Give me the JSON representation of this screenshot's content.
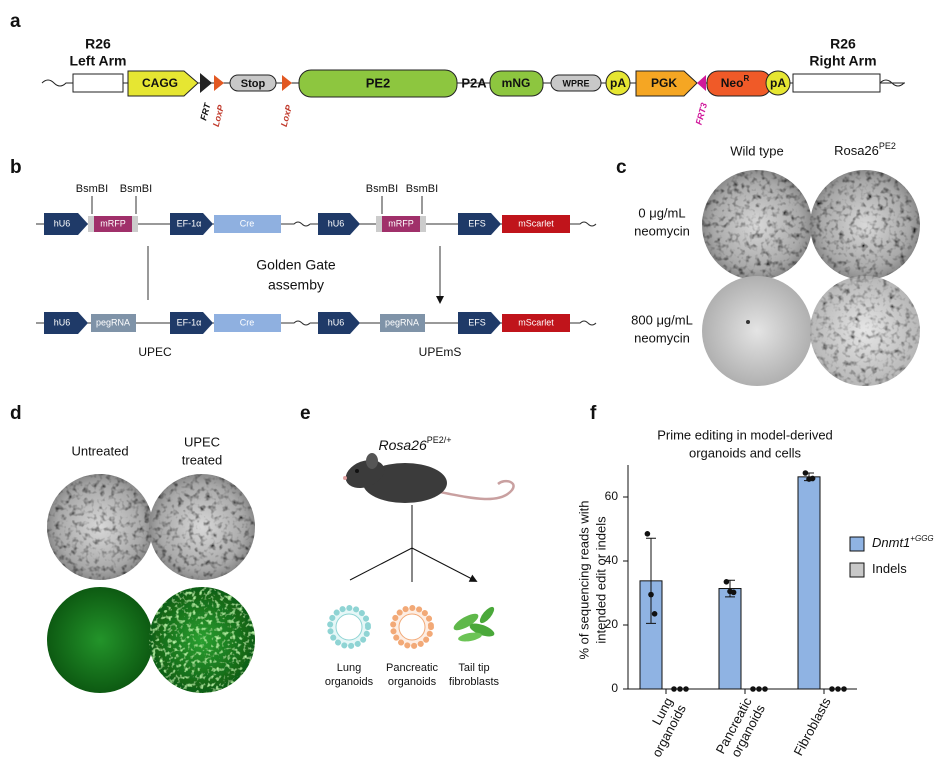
{
  "panel_labels": [
    "a",
    "b",
    "c",
    "d",
    "e",
    "f"
  ],
  "construct": {
    "left_arm": [
      "R26",
      "Left Arm"
    ],
    "cagg": "CAGG",
    "frt": "FRT",
    "loxp1": "LoxP",
    "stop": "Stop",
    "loxp2": "LoxP",
    "pe2": "PE2",
    "p2a": "P2A",
    "mng": "mNG",
    "wpre": "WPRE",
    "pa1": "pA",
    "pgk": "PGK",
    "frt3": "FRT3",
    "neo": "Neo",
    "neo_sup": "R",
    "pa2": "pA",
    "right_arm": [
      "R26",
      "Right Arm"
    ]
  },
  "vectors": {
    "bsmbi": [
      "BsmBI",
      "BsmBI",
      "BsmBI",
      "BsmBI"
    ],
    "top_left": [
      "hU6",
      "mRFP",
      "EF-1α",
      "Cre"
    ],
    "bottom_left": [
      "hU6",
      "pegRNA",
      "EF-1α",
      "Cre"
    ],
    "top_right": [
      "hU6",
      "mRFP",
      "EFS",
      "mScarlet"
    ],
    "bottom_right": [
      "hU6",
      "pegRNA",
      "EFS",
      "mScarlet"
    ],
    "assembly": [
      "Golden Gate",
      "assemby"
    ],
    "names": [
      "UPEC",
      "UPEmS"
    ]
  },
  "selection": {
    "columns": [
      "Wild type",
      {
        "name": "Rosa26",
        "superscript": "PE2"
      }
    ],
    "rows": [
      [
        "0 μg/mL",
        "neomycin"
      ],
      [
        "800 μg/mL",
        "neomycin"
      ]
    ]
  },
  "transduction": {
    "columns": [
      [
        "Untreated"
      ],
      [
        "UPEC",
        "treated"
      ]
    ]
  },
  "derivation": {
    "strain": {
      "name": "Rosa26",
      "superscript": "PE2/+"
    },
    "samples": [
      [
        "Lung",
        "organoids"
      ],
      [
        "Pancreatic",
        "organoids"
      ],
      [
        "Tail tip",
        "fibroblasts"
      ]
    ]
  },
  "chart_data": {
    "type": "bar",
    "title": [
      "Prime editing in model-derived",
      "organoids and cells"
    ],
    "y_label": [
      "% of sequencing reads with",
      "intended edit or indels"
    ],
    "categories": [
      [
        "Lung",
        "organoids"
      ],
      [
        "Pancreatic",
        "organoids"
      ],
      [
        "Fibroblasts"
      ]
    ],
    "series": [
      {
        "name": "Dnmt1",
        "name_superscript": "+GGG",
        "color": "#8fb3e3",
        "values": [
          33.8,
          31.4,
          66.3
        ],
        "errors": [
          13.3,
          2.6,
          1.2
        ],
        "points": [
          [
            48.5,
            29.5,
            23.5
          ],
          [
            33.5,
            30.5,
            30.2
          ],
          [
            67.5,
            65.6,
            65.8
          ]
        ]
      },
      {
        "name": "Indels",
        "color": "#c8c8c8",
        "values": [
          0,
          0,
          0
        ],
        "points": [
          [
            0,
            0,
            0
          ],
          [
            0,
            0,
            0
          ],
          [
            0,
            0,
            0
          ]
        ]
      }
    ],
    "ylim": [
      0,
      70
    ],
    "yticks": [
      0,
      20,
      40,
      60
    ],
    "legend": "right"
  }
}
